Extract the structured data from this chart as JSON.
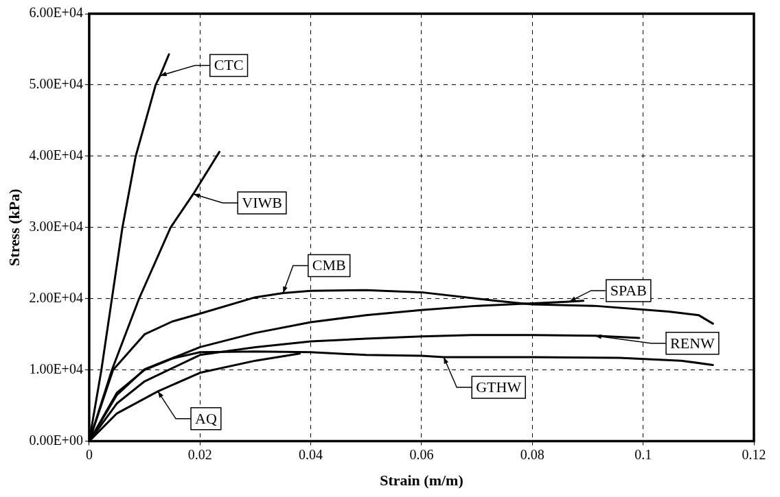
{
  "chart_data": {
    "type": "line",
    "xlabel": "Strain (m/m)",
    "ylabel": "Stress (kPa)",
    "xlim": [
      0,
      0.12
    ],
    "xticks": [
      0,
      0.02,
      0.04,
      0.06,
      0.08,
      0.1,
      0.12
    ],
    "ylim": [
      0,
      60000
    ],
    "yticks": [
      {
        "value": 0,
        "label": "0.00E+00"
      },
      {
        "value": 10000,
        "label": "1.00E+04"
      },
      {
        "value": 20000,
        "label": "2.00E+04"
      },
      {
        "value": 30000,
        "label": "3.00E+04"
      },
      {
        "value": 40000,
        "label": "4.00E+04"
      },
      {
        "value": 50000,
        "label": "5.00E+04"
      },
      {
        "value": 60000,
        "label": "6.00E+04"
      }
    ],
    "grid": true,
    "legend": false,
    "marker": "none",
    "line_style": "solid",
    "annotations": [
      {
        "text": "CTC",
        "x": 0.0128,
        "y": 51300
      },
      {
        "text": "VIWB",
        "x": 0.0188,
        "y": 34700
      },
      {
        "text": "CMB",
        "x": 0.035,
        "y": 20800
      },
      {
        "text": "SPAB",
        "x": 0.0867,
        "y": 19600
      },
      {
        "text": "RENW",
        "x": 0.0913,
        "y": 14800
      },
      {
        "text": "GTHW",
        "x": 0.064,
        "y": 11800
      },
      {
        "text": "AQ",
        "x": 0.0124,
        "y": 7000
      }
    ],
    "series": [
      {
        "color": "#000000",
        "x": [
          0,
          0.0022,
          0.0041,
          0.006,
          0.0084,
          0.012,
          0.0128,
          0.0144
        ],
        "values": [
          0,
          10000,
          20000,
          30000,
          40000,
          50000,
          51300,
          54300
        ]
      },
      {
        "color": "#000000",
        "x": [
          0,
          0.0041,
          0.009,
          0.0147,
          0.0188,
          0.0235
        ],
        "values": [
          0,
          10000,
          20000,
          30000,
          34700,
          40600
        ]
      },
      {
        "color": "#000000",
        "x": [
          0,
          0.0043,
          0.01,
          0.015,
          0.02,
          0.03,
          0.035,
          0.04,
          0.05,
          0.06,
          0.0734,
          0.08,
          0.0912,
          0.1046,
          0.11,
          0.1126
        ],
        "values": [
          0,
          10000,
          15000,
          16800,
          17900,
          20200,
          20800,
          21100,
          21200,
          20900,
          19700,
          19200,
          19000,
          18200,
          17700,
          16500
        ]
      },
      {
        "color": "#000000",
        "x": [
          0,
          0.005,
          0.01,
          0.02,
          0.03,
          0.04,
          0.05,
          0.06,
          0.07,
          0.0788,
          0.0867,
          0.0892
        ],
        "values": [
          0,
          6500,
          10100,
          13200,
          15200,
          16700,
          17700,
          18400,
          19000,
          19300,
          19600,
          19700
        ]
      },
      {
        "color": "#000000",
        "x": [
          0,
          0.005,
          0.01,
          0.02,
          0.03,
          0.04,
          0.05,
          0.06,
          0.069,
          0.08,
          0.0913,
          0.0993
        ],
        "values": [
          0,
          5300,
          8400,
          12100,
          13200,
          14000,
          14400,
          14700,
          14900,
          14900,
          14800,
          14500
        ]
      },
      {
        "color": "#000000",
        "x": [
          0,
          0.005,
          0.01,
          0.015,
          0.02,
          0.03,
          0.04,
          0.05,
          0.06,
          0.064,
          0.08,
          0.0957,
          0.1069,
          0.1126
        ],
        "values": [
          0,
          6800,
          10000,
          11600,
          12500,
          12600,
          12500,
          12100,
          12000,
          11800,
          11800,
          11700,
          11300,
          10700
        ]
      },
      {
        "color": "#000000",
        "x": [
          0,
          0.005,
          0.0124,
          0.02,
          0.03,
          0.038
        ],
        "values": [
          0,
          3900,
          7000,
          9600,
          11300,
          12300
        ]
      }
    ]
  }
}
